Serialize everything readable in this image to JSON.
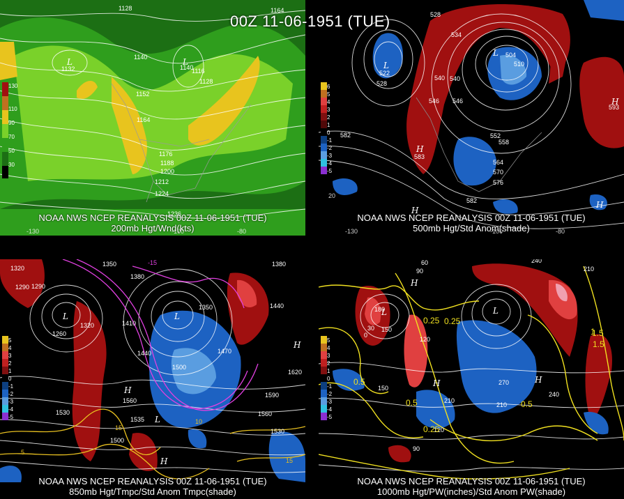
{
  "title": "00Z 11-06-1951 (TUE)",
  "panels": [
    {
      "caption_line1": "NOAA NWS NCEP REANALYSIS 00Z 11-06-1951 (TUE)",
      "caption_line2": "200mb Hgt/Wnd(kts)",
      "legend": [
        "130",
        "110",
        "90",
        "70",
        "50",
        "30"
      ],
      "contour_labels": [
        "1128",
        "1164",
        "1140",
        "1152",
        "1164",
        "1176",
        "1188",
        "1200",
        "1212",
        "1224",
        "1236",
        "1116",
        "1128",
        "1132",
        "1140"
      ],
      "lon_labels": [
        "-130",
        "-100",
        "-80"
      ]
    },
    {
      "caption_line1": "NOAA NWS NCEP REANALYSIS 00Z 11-06-1951 (TUE)",
      "caption_line2": "500mb Hgt/Std Anom(shade)",
      "legend": [
        "6",
        "5",
        "4",
        "3",
        "2",
        "1",
        "0",
        "-1",
        "-2",
        "-3",
        "-4",
        "-5"
      ],
      "contour_labels": [
        "528",
        "534",
        "540",
        "546",
        "552",
        "558",
        "564",
        "570",
        "576",
        "582",
        "582",
        "510",
        "504",
        "522",
        "528",
        "540",
        "546",
        "593",
        "583"
      ],
      "lon_labels": [
        "-130",
        "-100",
        "-80",
        "20"
      ]
    },
    {
      "caption_line1": "NOAA NWS NCEP REANALYSIS 00Z 11-06-1951 (TUE)",
      "caption_line2": "850mb Hgt/Tmpc/Std Anom Tmpc(shade)",
      "legend": [
        "5",
        "4",
        "3",
        "2",
        "1",
        "0",
        "-1",
        "-2",
        "-3",
        "-4",
        "-5"
      ],
      "contour_labels": [
        "1350",
        "1380",
        "1410",
        "1440",
        "1470",
        "1500",
        "1530",
        "1560",
        "1590",
        "1620",
        "1290",
        "1260",
        "1320",
        "1350",
        "1530",
        "1500",
        "1535",
        "1560",
        "1440",
        "1380",
        "1320",
        "1290"
      ],
      "temp_labels": [
        "-15",
        "-10",
        "-5",
        "0",
        "5",
        "10",
        "15"
      ]
    },
    {
      "caption_line1": "NOAA NWS NCEP REANALYSIS 00Z 11-06-1951 (TUE)",
      "caption_line2": "1000mb Hgt/PW(inches)/Std Anom PW(shade)",
      "legend": [
        "5",
        "4",
        "3",
        "2",
        "1",
        "0",
        "-1",
        "-2",
        "-3",
        "-4",
        "-5"
      ],
      "contour_labels": [
        "240",
        "210",
        "180",
        "150",
        "120",
        "90",
        "60",
        "30",
        "0",
        "270",
        "240",
        "210",
        "180",
        "150",
        "120",
        "90"
      ],
      "pw_labels": [
        "0.25",
        "0.5",
        "1",
        "1.5"
      ]
    }
  ],
  "colors": {
    "wind_light": "#7ad12a",
    "wind_mid": "#2f9e1d",
    "wind_dark": "#1c6f14",
    "wind_yellow": "#e8c41e",
    "anom_red": "#a01010",
    "anom_red_light": "#e04040",
    "anom_blue": "#1d62c2",
    "anom_blue_light": "#5a9de0",
    "temp_magenta": "#e040e0",
    "temp_yellow": "#e8c020",
    "pw_yellow": "#f0e020"
  }
}
